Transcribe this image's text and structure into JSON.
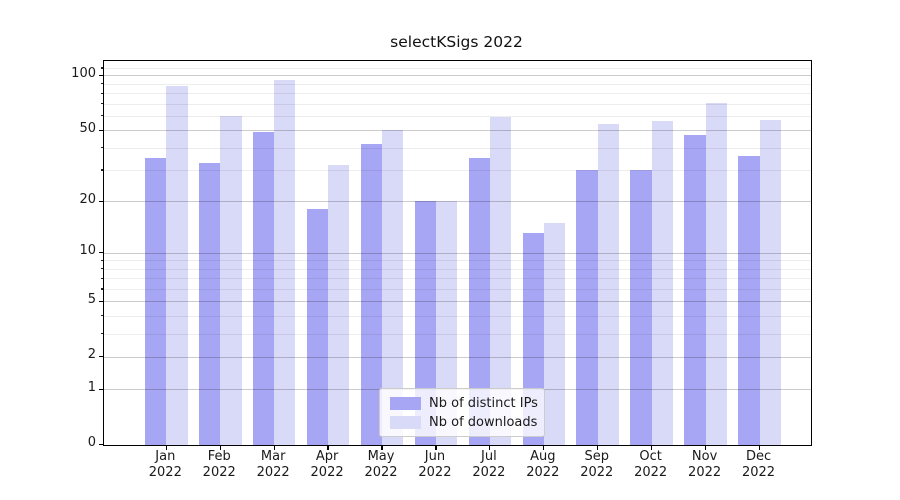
{
  "title": "selectKSigs 2022",
  "chart_data": {
    "type": "bar",
    "title": "selectKSigs 2022",
    "categories": [
      "Jan 2022",
      "Feb 2022",
      "Mar 2022",
      "Apr 2022",
      "May 2022",
      "Jun 2022",
      "Jul 2022",
      "Aug 2022",
      "Sep 2022",
      "Oct 2022",
      "Nov 2022",
      "Dec 2022"
    ],
    "series": [
      {
        "name": "Nb of distinct IPs",
        "color": "#a6a6f4",
        "values": [
          35,
          33,
          49,
          18,
          42,
          20,
          35,
          13,
          30,
          30,
          47,
          36
        ]
      },
      {
        "name": "Nb of downloads",
        "color": "#d9d9f8",
        "values": [
          87,
          60,
          95,
          32,
          50,
          20,
          59,
          15,
          54,
          56,
          71,
          57
        ]
      }
    ],
    "xlabel": "",
    "ylabel": "",
    "yscale": "log1p",
    "yticks": [
      0,
      1,
      2,
      5,
      10,
      20,
      50,
      100
    ],
    "minor_yticks": [
      3,
      4,
      6,
      7,
      8,
      9,
      30,
      40,
      60,
      70,
      80,
      90,
      110
    ],
    "ylim": [
      0,
      120
    ],
    "grid": true,
    "legend_position": "lower center"
  },
  "legend": {
    "items": [
      {
        "label": "Nb of distinct IPs"
      },
      {
        "label": "Nb of downloads"
      }
    ]
  }
}
